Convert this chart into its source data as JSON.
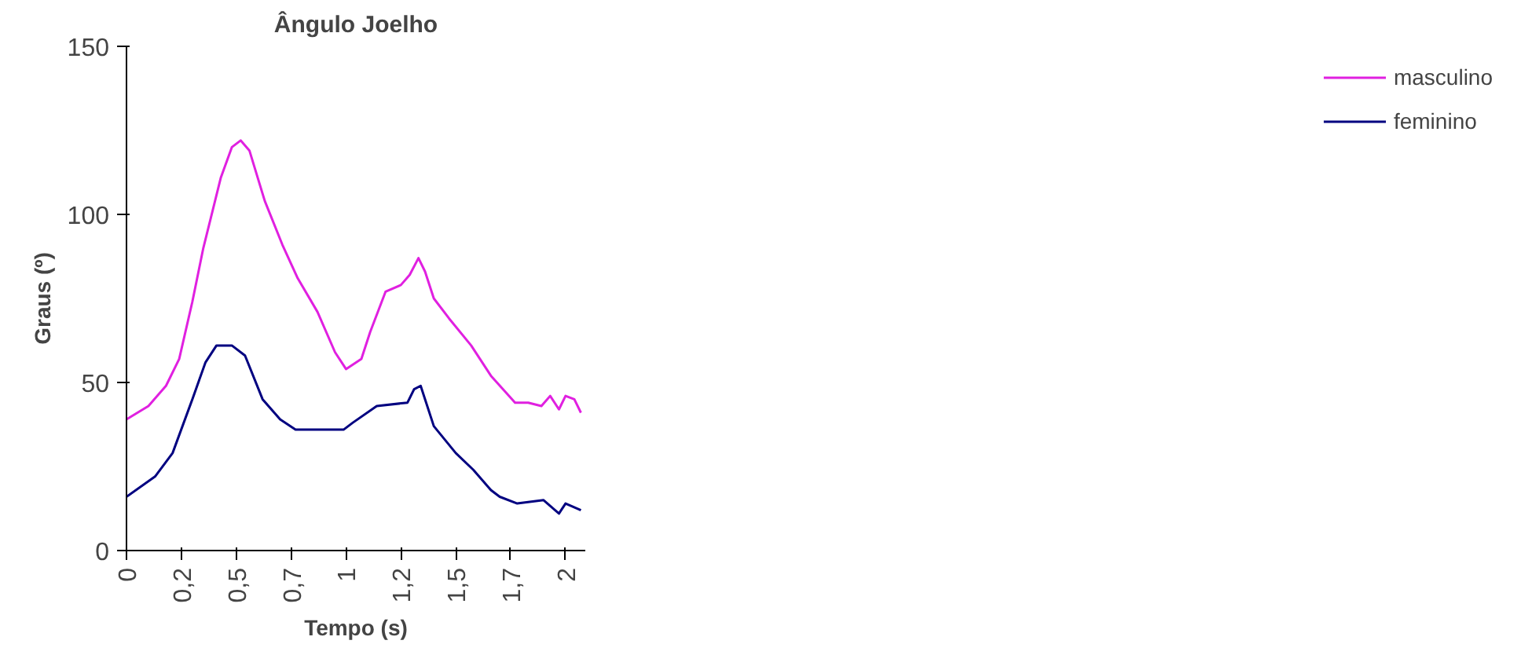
{
  "chart_data": {
    "type": "line",
    "title": "Ângulo Joelho",
    "xlabel": "Tempo (s)",
    "ylabel": "Graus (º)",
    "xlim": [
      0,
      2.09
    ],
    "xticks": [
      {
        "value": 0,
        "label": "0"
      },
      {
        "value": 0.25,
        "label": "0,2"
      },
      {
        "value": 0.5,
        "label": "0,5"
      },
      {
        "value": 0.75,
        "label": "0,7"
      },
      {
        "value": 1,
        "label": "1"
      },
      {
        "value": 1.25,
        "label": "1,2"
      },
      {
        "value": 1.5,
        "label": "1,5"
      },
      {
        "value": 1.75,
        "label": "1,7"
      },
      {
        "value": 2,
        "label": "2"
      }
    ],
    "ylim": [
      0,
      150
    ],
    "yticks": [
      0,
      50,
      100,
      150
    ],
    "grid": false,
    "legend": "right",
    "marker": "none",
    "line_style": "solid",
    "series": [
      {
        "name": "masculino",
        "color": "#e020e0",
        "x": [
          0,
          0.1,
          0.18,
          0.24,
          0.3,
          0.35,
          0.43,
          0.48,
          0.52,
          0.56,
          0.63,
          0.71,
          0.78,
          0.87,
          0.95,
          1.0,
          1.07,
          1.11,
          1.18,
          1.25,
          1.29,
          1.33,
          1.36,
          1.4,
          1.47,
          1.57,
          1.66,
          1.77,
          1.83,
          1.89,
          1.93,
          1.97,
          2.0,
          2.04,
          2.07
        ],
        "values": [
          39,
          43,
          49,
          57,
          74,
          90,
          111,
          120,
          122,
          119,
          104,
          91,
          81,
          71,
          59,
          54,
          57,
          65,
          77,
          79,
          82,
          87,
          83,
          75,
          69,
          61,
          52,
          44,
          44,
          43,
          46,
          42,
          46,
          45,
          41
        ]
      },
      {
        "name": "feminino",
        "color": "#000080",
        "x": [
          0,
          0.13,
          0.21,
          0.3,
          0.36,
          0.41,
          0.48,
          0.54,
          0.62,
          0.7,
          0.77,
          0.99,
          1.03,
          1.14,
          1.28,
          1.31,
          1.34,
          1.4,
          1.5,
          1.58,
          1.66,
          1.7,
          1.78,
          1.9,
          1.97,
          2.0,
          2.07
        ],
        "values": [
          16,
          22,
          29,
          45,
          56,
          61,
          61,
          58,
          45,
          39,
          36,
          36,
          38,
          43,
          44,
          48,
          49,
          37,
          29,
          24,
          18,
          16,
          14,
          15,
          11,
          14,
          12
        ]
      }
    ]
  }
}
